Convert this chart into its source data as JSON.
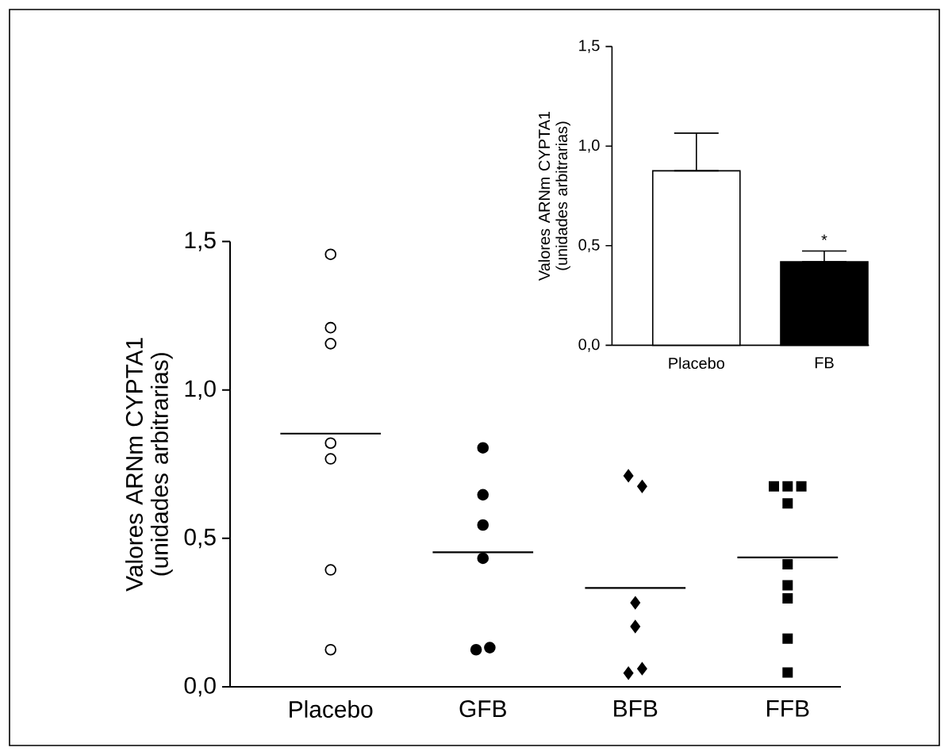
{
  "chart_data": [
    {
      "type": "scatter",
      "ylabel": "Valores ARNm CYPTA1 (unidades arbitrarias)",
      "categories": [
        "Placebo",
        "GFB",
        "BFB",
        "FFB"
      ],
      "ylim": [
        0,
        1.5
      ],
      "yticks": [
        {
          "value": 0,
          "label": "0,0"
        },
        {
          "value": 0.5,
          "label": "0,5"
        },
        {
          "value": 1,
          "label": "1,0"
        },
        {
          "value": 1.5,
          "label": "1,5"
        }
      ],
      "series": [
        {
          "type": "scatter",
          "marker": "circle",
          "color": "#ffffff",
          "x": [
            "Placebo",
            "Placebo",
            "Placebo",
            "Placebo",
            "Placebo",
            "Placebo",
            "Placebo"
          ],
          "values": [
            1.457,
            1.21,
            1.156,
            0.821,
            0.768,
            0.394,
            0.125
          ]
        },
        {
          "type": "scatter",
          "marker": "circle",
          "color": "#000000",
          "x": [
            "GFB",
            "GFB",
            "GFB",
            "GFB",
            "GFB",
            "GFB"
          ],
          "values": [
            0.805,
            0.647,
            0.545,
            0.433,
            0.125,
            0.132
          ]
        },
        {
          "type": "scatter",
          "marker": "diamond",
          "color": "#000000",
          "x": [
            "BFB",
            "BFB",
            "BFB",
            "BFB",
            "BFB",
            "BFB"
          ],
          "values": [
            0.711,
            0.675,
            0.283,
            0.203,
            0.046,
            0.061
          ]
        },
        {
          "type": "scatter",
          "marker": "square",
          "color": "#000000",
          "x": [
            "FFB",
            "FFB",
            "FFB",
            "FFB",
            "FFB",
            "FFB",
            "FFB",
            "FFB",
            "FFB"
          ],
          "values": [
            0.675,
            0.675,
            0.675,
            0.618,
            0.413,
            0.342,
            0.298,
            0.162,
            0.048
          ]
        }
      ],
      "ref_lines": [
        {
          "axis": "y",
          "value": 0.853,
          "color": "#000000"
        },
        {
          "axis": "y",
          "value": 0.453,
          "color": "#000000"
        },
        {
          "axis": "y",
          "value": 0.333,
          "color": "#000000"
        },
        {
          "axis": "y",
          "value": 0.436,
          "color": "#000000"
        }
      ]
    },
    {
      "type": "bar",
      "ylabel": "Valores ARNm CYPTA1 (unidades arbitrarias)",
      "categories": [
        "Placebo",
        "FB"
      ],
      "values": [
        0.876,
        0.419
      ],
      "colors": [
        "#ffffff",
        "#000000"
      ],
      "errors": [
        [
          0.876,
          1.065
        ],
        [
          0.419,
          0.473
        ]
      ],
      "ylim": [
        0,
        1.5
      ],
      "yticks": [
        {
          "value": 0,
          "label": "0,0"
        },
        {
          "value": 0.5,
          "label": "0,5"
        },
        {
          "value": 1,
          "label": "1,0"
        },
        {
          "value": 1.5,
          "label": "1,5"
        }
      ],
      "annotations": [
        {
          "text": "*",
          "x": "FB",
          "y": 0.473
        }
      ]
    }
  ]
}
